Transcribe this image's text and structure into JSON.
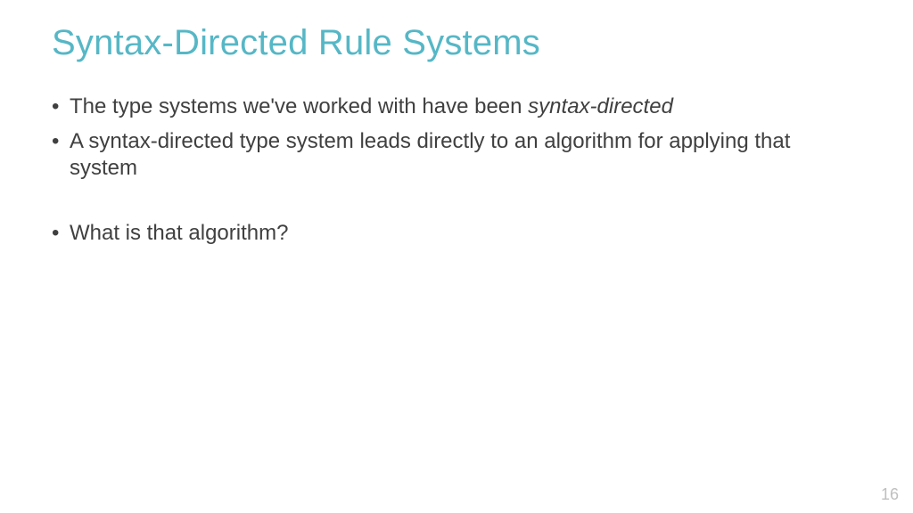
{
  "slide": {
    "title": "Syntax-Directed Rule Systems",
    "title_color": "#56b7c6",
    "title_fontsize": 40,
    "body_color": "#404040",
    "body_fontsize": 24,
    "background_color": "#ffffff",
    "bullets": [
      {
        "pre": "The type systems we've worked with have been ",
        "em": "syntax-directed",
        "post": ""
      },
      {
        "pre": "A syntax-directed type system leads directly to an algorithm for applying that system",
        "em": "",
        "post": ""
      }
    ],
    "bullets2": [
      {
        "pre": "What is that algorithm?",
        "em": "",
        "post": ""
      }
    ],
    "page_number": "16",
    "page_number_color": "#bfbfbf"
  }
}
